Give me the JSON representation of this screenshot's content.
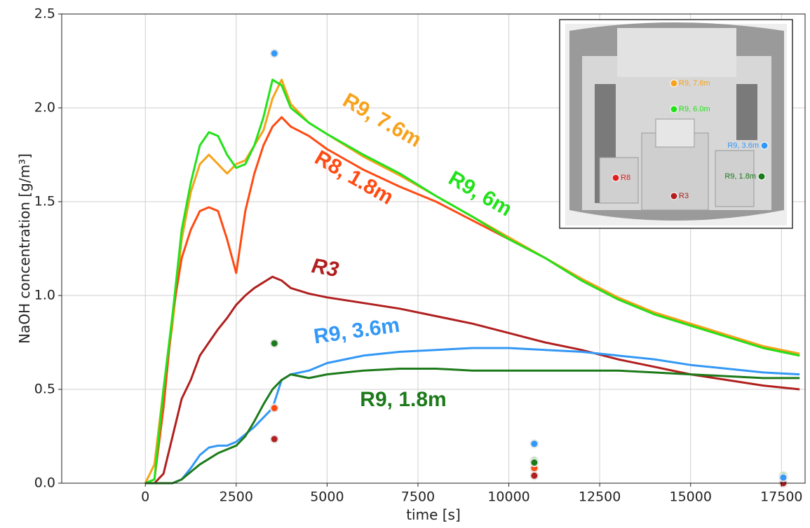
{
  "chart_data": {
    "type": "line",
    "xlabel": "time [s]",
    "ylabel": "NaOH concentration [g/m³]",
    "xlim": [
      -2300,
      18150
    ],
    "ylim": [
      0,
      2.5
    ],
    "xticks": [
      0,
      2500,
      5000,
      7500,
      10000,
      12500,
      15000,
      17500
    ],
    "yticks": [
      {
        "value": 0,
        "label": "0.0"
      },
      0.5,
      {
        "value": 1,
        "label": "1.0"
      },
      1.5,
      {
        "value": 2,
        "label": "2.0"
      },
      2.5
    ],
    "grid": true,
    "x": [
      0,
      250,
      500,
      750,
      1000,
      1250,
      1500,
      1750,
      2000,
      2250,
      2500,
      2750,
      3000,
      3250,
      3500,
      3750,
      4000,
      4500,
      5000,
      6000,
      7000,
      8000,
      9000,
      10000,
      11000,
      12000,
      13000,
      14000,
      15000,
      16000,
      17000,
      18000
    ],
    "series": [
      {
        "name": "R9, 7.6m",
        "color": "#f7a21b",
        "values": [
          0,
          0.1,
          0.5,
          0.85,
          1.3,
          1.55,
          1.7,
          1.75,
          1.7,
          1.65,
          1.7,
          1.72,
          1.8,
          1.88,
          2.05,
          2.15,
          2.02,
          1.92,
          1.86,
          1.74,
          1.64,
          1.53,
          1.42,
          1.31,
          1.2,
          1.09,
          0.99,
          0.91,
          0.85,
          0.79,
          0.73,
          0.69
        ]
      },
      {
        "name": "R8, 1.8m",
        "color": "#ff4a12",
        "values": [
          0,
          0.02,
          0.4,
          0.9,
          1.2,
          1.35,
          1.45,
          1.47,
          1.45,
          1.3,
          1.12,
          1.45,
          1.65,
          1.8,
          1.9,
          1.95,
          1.9,
          1.85,
          1.78,
          1.67,
          1.58,
          1.5,
          1.4,
          1.3,
          1.2,
          1.08,
          0.98,
          0.9,
          0.84,
          0.78,
          0.72,
          0.68
        ],
        "points": {
          "x": [
            3550,
            10700
          ],
          "values": [
            0.4,
            0.08
          ]
        }
      },
      {
        "name": "R9, 6m",
        "color": "#22e21a",
        "values": [
          0,
          0.02,
          0.5,
          0.9,
          1.35,
          1.6,
          1.8,
          1.87,
          1.85,
          1.75,
          1.68,
          1.7,
          1.8,
          1.95,
          2.15,
          2.12,
          2.0,
          1.92,
          1.86,
          1.75,
          1.65,
          1.53,
          1.42,
          1.3,
          1.2,
          1.08,
          0.98,
          0.9,
          0.84,
          0.78,
          0.72,
          0.68
        ],
        "points": {
          "x": [
            10700,
            17550
          ],
          "values": [
            0.12,
            0.04
          ]
        }
      },
      {
        "name": "R3",
        "color": "#b0201f",
        "values": [
          0,
          0,
          0.05,
          0.25,
          0.45,
          0.55,
          0.68,
          0.75,
          0.82,
          0.88,
          0.95,
          1.0,
          1.04,
          1.07,
          1.1,
          1.08,
          1.04,
          1.01,
          0.99,
          0.96,
          0.93,
          0.89,
          0.85,
          0.8,
          0.75,
          0.71,
          0.66,
          0.62,
          0.58,
          0.55,
          0.52,
          0.5
        ],
        "points": {
          "x": [
            3550,
            10700,
            17550
          ],
          "values": [
            0.235,
            0.04,
            0
          ]
        }
      },
      {
        "name": "R9, 3.6m",
        "color": "#3398f5",
        "values": [
          0,
          0,
          0,
          0,
          0.02,
          0.08,
          0.15,
          0.19,
          0.2,
          0.2,
          0.22,
          0.26,
          0.3,
          0.35,
          0.4,
          0.55,
          0.58,
          0.6,
          0.64,
          0.68,
          0.7,
          0.71,
          0.72,
          0.72,
          0.71,
          0.7,
          0.68,
          0.66,
          0.63,
          0.61,
          0.59,
          0.58
        ],
        "points": {
          "x": [
            3550,
            10700,
            17550
          ],
          "values": [
            2.29,
            0.21,
            0.03
          ]
        }
      },
      {
        "name": "R9, 1.8m",
        "color": "#1d7a1a",
        "values": [
          0,
          0,
          0,
          0,
          0.02,
          0.06,
          0.1,
          0.13,
          0.16,
          0.18,
          0.2,
          0.25,
          0.33,
          0.42,
          0.5,
          0.55,
          0.58,
          0.56,
          0.58,
          0.6,
          0.61,
          0.61,
          0.6,
          0.6,
          0.6,
          0.6,
          0.6,
          0.59,
          0.58,
          0.57,
          0.56,
          0.56
        ],
        "points": {
          "x": [
            3550,
            10700
          ],
          "values": [
            0.745,
            0.11
          ]
        }
      }
    ],
    "inset": {
      "labels": [
        {
          "text": "R9, 7.6m",
          "color": "#f7a21b"
        },
        {
          "text": "R9, 6.0m",
          "color": "#22e21a"
        },
        {
          "text": "R9, 3.6m",
          "color": "#3398f5"
        },
        {
          "text": "R8",
          "color": "#e02020"
        },
        {
          "text": "R3",
          "color": "#b0201f"
        },
        {
          "text": "R9, 1.8m",
          "color": "#1d7a1a"
        }
      ]
    }
  }
}
